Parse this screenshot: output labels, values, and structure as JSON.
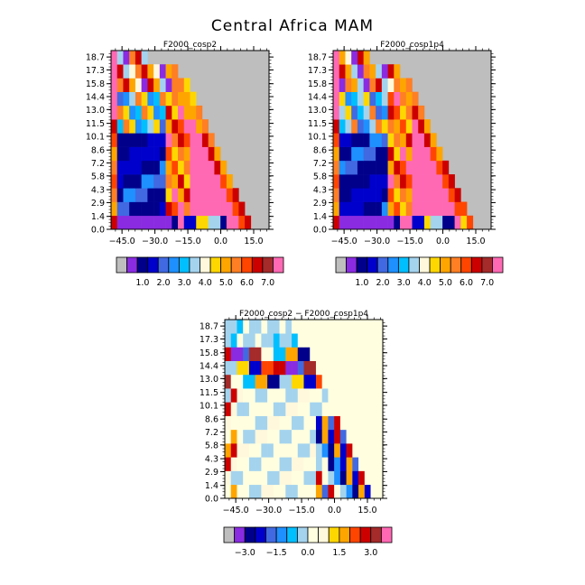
{
  "figure": {
    "title": "Central Africa MAM"
  },
  "chart_data": [
    {
      "type": "heatmap",
      "title": "F2000_cosp2",
      "x_ticks": [
        -45.0,
        -30.0,
        -15.0,
        0.0,
        15.0
      ],
      "x_tick_labels": [
        "−45.0",
        "−30.0",
        "−15.0",
        "0.0",
        "15.0"
      ],
      "xlim": [
        -50,
        22
      ],
      "y_ticks": [
        0.0,
        1.4,
        2.9,
        4.3,
        5.8,
        7.2,
        8.6,
        10.1,
        11.5,
        13.0,
        14.4,
        15.8,
        17.3,
        18.7
      ],
      "y_tick_labels": [
        "0.0",
        "1.4",
        "2.9",
        "4.3",
        "5.8",
        "7.2",
        "8.6",
        "10.1",
        "11.5",
        "13.0",
        "14.4",
        "15.8",
        "17.3",
        "18.7"
      ],
      "missing_color": "#bebebe",
      "colorbar": {
        "colors": [
          "#bebebe",
          "#8a2be2",
          "#00008b",
          "#0000cd",
          "#4169e1",
          "#1e90ff",
          "#00bfff",
          "#a4d3ee",
          "#fff8dc",
          "#ffd700",
          "#ffa500",
          "#ff7f24",
          "#ff4500",
          "#cd0000",
          "#a52a2a",
          "#ff69b4"
        ],
        "labels": [
          "1.0",
          "2.0",
          "3.0",
          "4.0",
          "5.0",
          "6.0",
          "7.0"
        ]
      }
    },
    {
      "type": "heatmap",
      "title": "F2000_cosp1p4",
      "x_ticks": [
        -45.0,
        -30.0,
        -15.0,
        0.0,
        15.0
      ],
      "x_tick_labels": [
        "−45.0",
        "−30.0",
        "−15.0",
        "0.0",
        "15.0"
      ],
      "xlim": [
        -50,
        22
      ],
      "y_ticks": [
        0.0,
        1.4,
        2.9,
        4.3,
        5.8,
        7.2,
        8.6,
        10.1,
        11.5,
        13.0,
        14.4,
        15.8,
        17.3,
        18.7
      ],
      "y_tick_labels": [
        "0.0",
        "1.4",
        "2.9",
        "4.3",
        "5.8",
        "7.2",
        "8.6",
        "10.1",
        "11.5",
        "13.0",
        "14.4",
        "15.8",
        "17.3",
        "18.7"
      ],
      "missing_color": "#bebebe",
      "colorbar": {
        "colors": [
          "#bebebe",
          "#8a2be2",
          "#00008b",
          "#0000cd",
          "#4169e1",
          "#1e90ff",
          "#00bfff",
          "#a4d3ee",
          "#fff8dc",
          "#ffd700",
          "#ffa500",
          "#ff7f24",
          "#ff4500",
          "#cd0000",
          "#a52a2a",
          "#ff69b4"
        ],
        "labels": [
          "1.0",
          "2.0",
          "3.0",
          "4.0",
          "5.0",
          "6.0",
          "7.0"
        ]
      }
    },
    {
      "type": "heatmap",
      "title": "F2000_cosp2 − F2000_cosp1p4",
      "x_ticks": [
        -45.0,
        -30.0,
        -15.0,
        0.0,
        15.0
      ],
      "x_tick_labels": [
        "−45.0",
        "−30.0",
        "−15.0",
        "0.0",
        "15.0"
      ],
      "xlim": [
        -50,
        22
      ],
      "y_ticks": [
        0.0,
        1.4,
        2.9,
        4.3,
        5.8,
        7.2,
        8.6,
        10.1,
        11.5,
        13.0,
        14.4,
        15.8,
        17.3,
        18.7
      ],
      "y_tick_labels": [
        "0.0",
        "1.4",
        "2.9",
        "4.3",
        "5.8",
        "7.2",
        "8.6",
        "10.1",
        "11.5",
        "13.0",
        "14.4",
        "15.8",
        "17.3",
        "18.7"
      ],
      "background_color": "#ffffcc",
      "colorbar": {
        "colors": [
          "#bebebe",
          "#8a2be2",
          "#00008b",
          "#0000cd",
          "#4169e1",
          "#1e90ff",
          "#00bfff",
          "#a4d3ee",
          "#ffffe0",
          "#fff8dc",
          "#ffd700",
          "#ffa500",
          "#ff4500",
          "#cd0000",
          "#a52a2a",
          "#ff69b4"
        ],
        "labels": [
          "−3.0",
          "−1.5",
          "0.0",
          "1.5",
          "3.0"
        ]
      }
    }
  ]
}
